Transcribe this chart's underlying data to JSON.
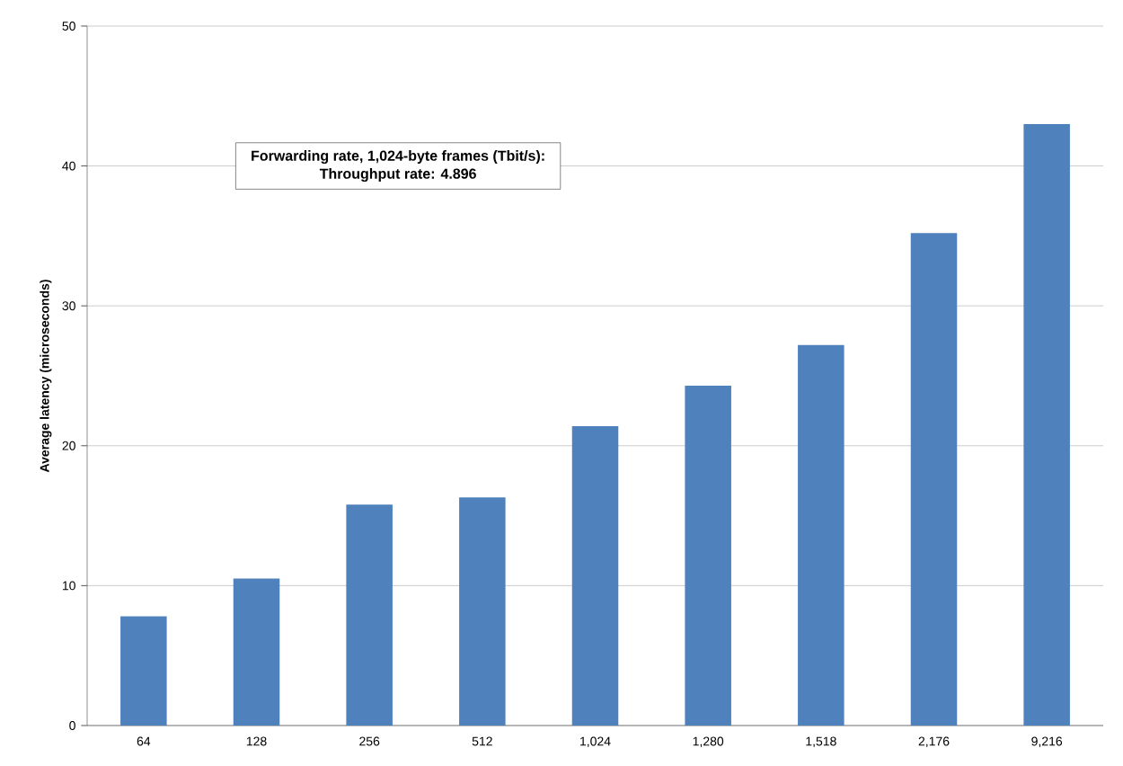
{
  "chart_data": {
    "type": "bar",
    "categories": [
      "64",
      "128",
      "256",
      "512",
      "1,024",
      "1,280",
      "1,518",
      "2,176",
      "9,216"
    ],
    "values": [
      7.8,
      10.5,
      15.8,
      16.3,
      21.4,
      24.3,
      27.2,
      35.2,
      43.0
    ],
    "color": "#4f81bd",
    "ylabel": "Average latency (microseconds)",
    "ylim": [
      0,
      50
    ],
    "yticks": [
      0,
      10,
      20,
      30,
      40,
      50
    ],
    "grid": "y",
    "annotations": [
      "Forwarding rate, 1,024-byte frames (Tbit/s):",
      "Throughput rate:  4.896"
    ]
  }
}
